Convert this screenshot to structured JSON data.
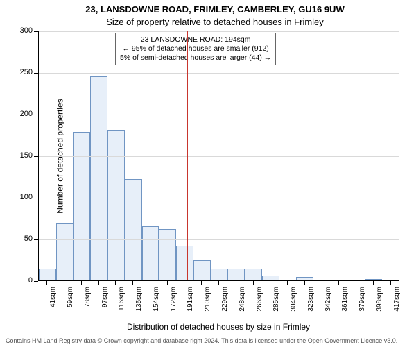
{
  "title": "23, LANSDOWNE ROAD, FRIMLEY, CAMBERLEY, GU16 9UW",
  "subtitle": "Size of property relative to detached houses in Frimley",
  "ylabel": "Number of detached properties",
  "xlabel": "Distribution of detached houses by size in Frimley",
  "footnote": "Contains HM Land Registry data © Crown copyright and database right 2024. This data is licensed under the Open Government Licence v3.0.",
  "annotation": {
    "line1": "23 LANSDOWNE ROAD: 194sqm",
    "line2": "← 95% of detached houses are smaller (912)",
    "line3": "5% of semi-detached houses are larger (44) →"
  },
  "chart": {
    "type": "histogram",
    "background_color": "#ffffff",
    "grid_color": "#d9d9d9",
    "axis_color": "#000000",
    "bar_fill": "#e7eff9",
    "bar_border": "#7095c3",
    "marker_color": "#c8362e",
    "xlim_sqm": [
      32,
      427
    ],
    "ylim": [
      0,
      300
    ],
    "ytick_step": 50,
    "title_fontsize": 13,
    "label_fontsize": 12,
    "tick_fontsize": 11,
    "bar_width_rel": 1.0,
    "marker_sqm": 194,
    "bins": [
      {
        "label": "41sqm",
        "mid": 41,
        "value": 14
      },
      {
        "label": "59sqm",
        "mid": 59,
        "value": 68
      },
      {
        "label": "78sqm",
        "mid": 78,
        "value": 178
      },
      {
        "label": "97sqm",
        "mid": 97,
        "value": 245
      },
      {
        "label": "116sqm",
        "mid": 116,
        "value": 180
      },
      {
        "label": "135sqm",
        "mid": 135,
        "value": 122
      },
      {
        "label": "154sqm",
        "mid": 154,
        "value": 65
      },
      {
        "label": "172sqm",
        "mid": 172,
        "value": 62
      },
      {
        "label": "191sqm",
        "mid": 191,
        "value": 42
      },
      {
        "label": "210sqm",
        "mid": 210,
        "value": 24
      },
      {
        "label": "229sqm",
        "mid": 229,
        "value": 14
      },
      {
        "label": "248sqm",
        "mid": 248,
        "value": 14
      },
      {
        "label": "266sqm",
        "mid": 266,
        "value": 14
      },
      {
        "label": "285sqm",
        "mid": 285,
        "value": 6
      },
      {
        "label": "304sqm",
        "mid": 304,
        "value": 0
      },
      {
        "label": "323sqm",
        "mid": 323,
        "value": 4
      },
      {
        "label": "342sqm",
        "mid": 342,
        "value": 0
      },
      {
        "label": "361sqm",
        "mid": 361,
        "value": 0
      },
      {
        "label": "379sqm",
        "mid": 379,
        "value": 0
      },
      {
        "label": "398sqm",
        "mid": 398,
        "value": 2
      },
      {
        "label": "417sqm",
        "mid": 417,
        "value": 0
      }
    ]
  }
}
